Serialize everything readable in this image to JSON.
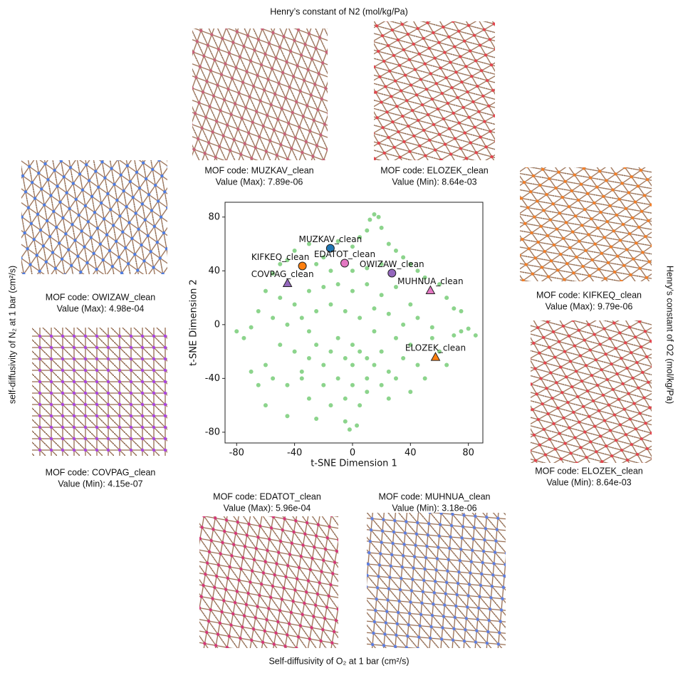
{
  "chart_data": {
    "type": "scatter",
    "titles": {
      "top": "Henry’s constant of N2 (mol/kg/Pa)",
      "bottom": "Self-diffusivity of O₂ at 1 bar (cm²/s)",
      "left": "self-diffusivity of N₂ at 1 bar (cm²/s)",
      "right": "Henry’s constant of O2 (mol/kg/Pa)"
    },
    "xlabel": "t-SNE Dimension 1",
    "ylabel": "t-SNE Dimension 2",
    "xlim": [
      -88,
      90
    ],
    "ylim": [
      -88,
      91
    ],
    "xticks": [
      -80,
      -40,
      0,
      40,
      80
    ],
    "yticks": [
      -80,
      -40,
      0,
      40,
      80
    ],
    "series": [
      {
        "color": "#7fcf7f",
        "x": [
          -40,
          -30,
          -20,
          -10,
          0,
          5,
          10,
          12,
          15,
          18,
          20,
          25,
          30,
          35,
          40,
          45,
          -45,
          -50,
          -25,
          -15,
          0,
          10,
          20,
          50,
          -55,
          -60,
          -50,
          -40,
          -30,
          -20,
          -10,
          0,
          10,
          20,
          30,
          40,
          60,
          65,
          70,
          75,
          -65,
          -55,
          -45,
          -35,
          -25,
          -15,
          -5,
          5,
          15,
          25,
          35,
          45,
          55,
          75,
          80,
          85,
          70,
          -80,
          -75,
          -70,
          -10,
          0,
          5,
          -5,
          10,
          15,
          -15,
          -20,
          0,
          20,
          25,
          -25,
          -30,
          -40,
          -50,
          -60,
          -55,
          -45,
          -35,
          -20,
          -10,
          0,
          10,
          20,
          30,
          35,
          40,
          45,
          50,
          55,
          60,
          65,
          -5,
          5,
          -15,
          10,
          -30,
          -25,
          -45,
          -5,
          -2,
          3,
          -65,
          -70,
          -60,
          30,
          15,
          -30,
          -35,
          40,
          25
        ],
        "values": [
          55,
          60,
          50,
          62,
          58,
          65,
          70,
          78,
          82,
          80,
          72,
          60,
          55,
          50,
          45,
          40,
          48,
          45,
          45,
          40,
          40,
          42,
          45,
          35,
          38,
          25,
          20,
          15,
          25,
          28,
          30,
          25,
          30,
          22,
          28,
          15,
          30,
          20,
          12,
          10,
          10,
          5,
          0,
          5,
          10,
          15,
          10,
          5,
          12,
          8,
          0,
          5,
          -2,
          -5,
          -3,
          -8,
          -8,
          -5,
          -10,
          -2,
          -10,
          -15,
          -20,
          -25,
          -25,
          -30,
          -20,
          -30,
          -30,
          -20,
          -35,
          -15,
          -25,
          -20,
          -15,
          -30,
          -40,
          -45,
          -35,
          -45,
          -40,
          -45,
          -40,
          -45,
          -40,
          -25,
          -15,
          -30,
          -40,
          -10,
          -20,
          -30,
          -55,
          -60,
          -60,
          -50,
          -55,
          -70,
          -68,
          -72,
          -78,
          -75,
          -45,
          -35,
          -60,
          -10,
          -5,
          -5,
          -40,
          -50,
          -55
        ]
      }
    ],
    "highlights": [
      {
        "label": "MUZKAV_clean",
        "x": -15.3,
        "y": 56.8,
        "color": "#1f77b4",
        "marker": "circle"
      },
      {
        "label": "KIFKEQ_clean",
        "x": -34.6,
        "y": 43.6,
        "color": "#ff7f0e",
        "marker": "circle"
      },
      {
        "label": "EDATOT_clean",
        "x": -5.4,
        "y": 45.7,
        "color": "#e377c2",
        "marker": "circle"
      },
      {
        "label": "OWIZAW_clean",
        "x": 27.2,
        "y": 38.3,
        "color": "#9467bd",
        "marker": "circle"
      },
      {
        "label": "COVPAG_clean",
        "x": -44.9,
        "y": 30.9,
        "color": "#9467bd",
        "marker": "triangle"
      },
      {
        "label": "MUHNUA_clean",
        "x": 53.8,
        "y": 25.6,
        "color": "#e377c2",
        "marker": "triangle"
      },
      {
        "label": "ELOZEK_clean",
        "x": 57.3,
        "y": -24.0,
        "color": "#ff7f0e",
        "marker": "triangle"
      }
    ],
    "panels": [
      {
        "code": "MOF code: MUZKAV_clean",
        "value": "Value (Max): 7.89e-06",
        "accent": "#c0506a"
      },
      {
        "code": "MOF code: ELOZEK_clean",
        "value": "Value (Min): 8.64e-03",
        "accent": "#e0303a"
      },
      {
        "code": "MOF code: OWIZAW_clean",
        "value": "Value (Max): 4.98e-04",
        "accent": "#3a6fe0"
      },
      {
        "code": "MOF code: COVPAG_clean",
        "value": "Value (Min): 4.15e-07",
        "accent": "#a030e0"
      },
      {
        "code": "MOF code: KIFKEQ_clean",
        "value": "Value (Max): 9.79e-06",
        "accent": "#f07010"
      },
      {
        "code": "MOF code: ELOZEK_clean",
        "value": "Value (Min): 8.64e-03",
        "accent": "#e0303a"
      },
      {
        "code": "MOF code: EDATOT_clean",
        "value": "Value (Max): 5.96e-04",
        "accent": "#d0206a"
      },
      {
        "code": "MOF code: MUHNUA_clean",
        "value": "Value (Min): 3.18e-06",
        "accent": "#4a70e0"
      }
    ]
  }
}
